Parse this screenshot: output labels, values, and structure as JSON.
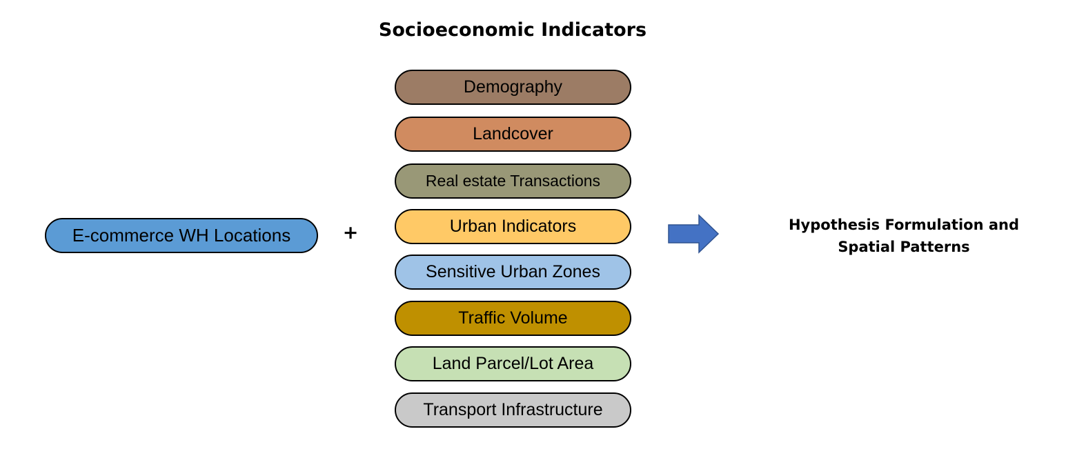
{
  "diagram": {
    "title": "Socioeconomic Indicators",
    "source": {
      "label": "E-commerce WH Locations",
      "color": "#5b9bd5"
    },
    "operator": "+",
    "indicators": [
      {
        "label": "Demography",
        "color": "#9c7c65"
      },
      {
        "label": "Landcover",
        "color": "#d08b60"
      },
      {
        "label": "Real estate Transactions",
        "color": "#999877"
      },
      {
        "label": "Urban Indicators",
        "color": "#ffc966"
      },
      {
        "label": "Sensitive Urban Zones",
        "color": "#9fc3e7"
      },
      {
        "label": "Traffic Volume",
        "color": "#bf9000"
      },
      {
        "label": "Land Parcel/Lot Area",
        "color": "#c6e0b4"
      },
      {
        "label": "Transport Infrastructure",
        "color": "#c9c9c9"
      }
    ],
    "arrow": {
      "icon": "right-arrow-icon",
      "color": "#4472c4"
    },
    "result": {
      "line1": "Hypothesis Formulation and",
      "line2": "Spatial Patterns"
    }
  }
}
